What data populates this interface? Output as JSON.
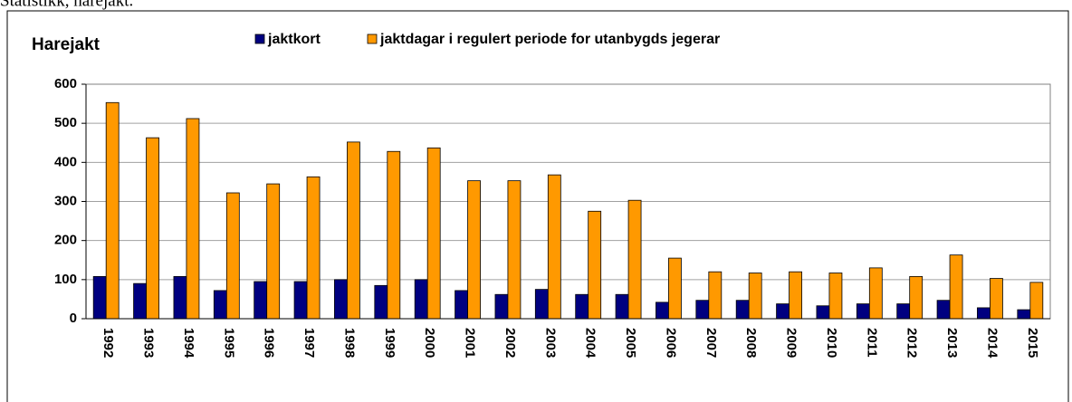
{
  "caption": "Statistikk, harejakt.",
  "chart_data": {
    "type": "bar",
    "title": "Harejakt",
    "categories": [
      "1992",
      "1993",
      "1994",
      "1995",
      "1996",
      "1997",
      "1998",
      "1999",
      "2000",
      "2001",
      "2002",
      "2003",
      "2004",
      "2005",
      "2006",
      "2007",
      "2008",
      "2009",
      "2010",
      "2011",
      "2012",
      "2013",
      "2014",
      "2015"
    ],
    "series": [
      {
        "name": "jaktkort",
        "color": "#000080",
        "values": [
          108,
          90,
          108,
          72,
          95,
          95,
          100,
          85,
          100,
          72,
          62,
          75,
          62,
          62,
          42,
          47,
          47,
          38,
          33,
          38,
          38,
          47,
          28,
          23
        ]
      },
      {
        "name": "jaktdagar i regulert periode for utanbygds jegerar",
        "color": "#ff9900",
        "values": [
          553,
          463,
          512,
          322,
          345,
          363,
          452,
          428,
          437,
          353,
          353,
          368,
          275,
          303,
          155,
          120,
          117,
          120,
          117,
          130,
          108,
          163,
          103,
          93
        ]
      }
    ],
    "ylim": [
      0,
      600
    ],
    "yticks": [
      0,
      100,
      200,
      300,
      400,
      500,
      600
    ],
    "grid": true,
    "legend": "top"
  }
}
